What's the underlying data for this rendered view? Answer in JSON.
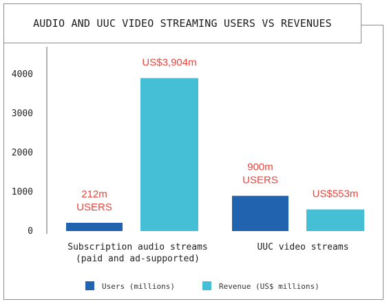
{
  "chart_data": {
    "type": "bar",
    "title": "AUDIO AND UUC VIDEO STREAMING USERS VS REVENUES",
    "categories": [
      [
        "Subscription audio streams",
        "(paid and ad-supported)"
      ],
      [
        "UUC video streams"
      ]
    ],
    "series": [
      {
        "name": "Users (millions)",
        "color": "#2263b0",
        "values": [
          212,
          900
        ]
      },
      {
        "name": "Revenue (US$ millions)",
        "color": "#45bfd6",
        "values": [
          3904,
          553
        ]
      }
    ],
    "data_labels": [
      [
        [
          "212m",
          "USERS"
        ],
        [
          "US$3,904m"
        ]
      ],
      [
        [
          "900m",
          "USERS"
        ],
        [
          "US$553m"
        ]
      ]
    ],
    "y_ticks": [
      0,
      1000,
      2000,
      3000,
      4000
    ],
    "ylim": [
      0,
      4000
    ],
    "legend_position": "bottom",
    "grid": false,
    "label_color": "#e8453c"
  }
}
